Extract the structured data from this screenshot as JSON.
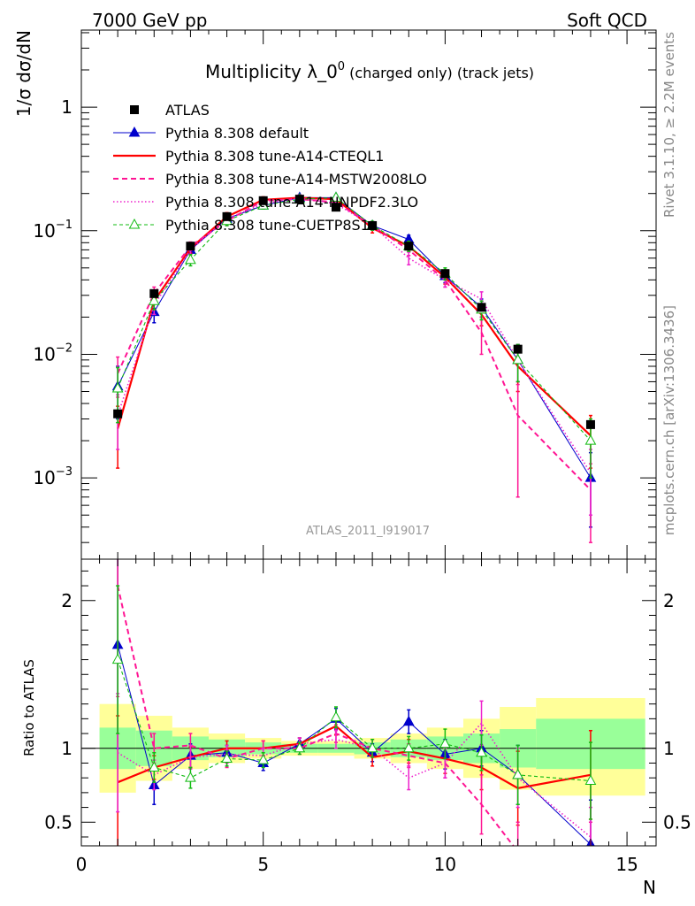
{
  "header": {
    "left": "7000 GeV pp",
    "right": "Soft QCD"
  },
  "plot": {
    "title_main": "Multiplicity λ_0",
    "title_sup": "0",
    "title_sub": " (charged only) (track jets)",
    "ylabel": "1/σ dσ/dN",
    "ref_tag": "ATLAS_2011_I919017",
    "side_top": "Rivet 3.1.10, ≥ 2.2M events",
    "side_bottom": "mcplots.cern.ch [arXiv:1306.3436]"
  },
  "ratio": {
    "ylabel": "Ratio to ATLAS"
  },
  "xlabel": "N",
  "colors": {
    "data": "#000000",
    "default": "#0000cc",
    "cteql1": "#ff0000",
    "mstw": "#ff1493",
    "nnpdf": "#ee22cc",
    "cuetp": "#11bb11",
    "band_outer": "#ffff99",
    "band_inner": "#99ff99"
  },
  "chart_data": [
    {
      "type": "line",
      "title": "Multiplicity λ_0^0 (charged only) (track jets)",
      "xlabel": "N",
      "ylabel": "1/σ dσ/dN",
      "xlim": [
        0,
        15.8
      ],
      "ylim": [
        0.00022,
        4.2
      ],
      "yscale": "log",
      "x_ticks": [
        "0",
        "5",
        "10",
        "15"
      ],
      "y_ticks": [
        {
          "base": "1",
          "exp": ""
        },
        {
          "base": "10",
          "exp": "−1"
        },
        {
          "base": "10",
          "exp": "−2"
        },
        {
          "base": "10",
          "exp": "−3"
        }
      ],
      "legend_position": "top-left",
      "data_series": {
        "name": "ATLAS",
        "x": [
          1,
          2,
          3,
          4,
          5,
          6,
          7,
          8,
          9,
          10,
          11,
          12,
          14
        ],
        "y": [
          0.0033,
          0.031,
          0.075,
          0.13,
          0.175,
          0.18,
          0.155,
          0.11,
          0.075,
          0.045,
          0.024,
          0.011,
          0.0027
        ]
      },
      "series": [
        {
          "name": "Pythia 8.308 default",
          "x": [
            1,
            2,
            3,
            4,
            5,
            6,
            7,
            8,
            9,
            10,
            11,
            12,
            14
          ],
          "y": [
            0.0055,
            0.022,
            0.07,
            0.125,
            0.16,
            0.185,
            0.185,
            0.11,
            0.085,
            0.043,
            0.024,
            0.009,
            0.001
          ],
          "err": [
            0.0025,
            0.004,
            0.006,
            0.01,
            0.01,
            0.01,
            0.01,
            0.009,
            0.007,
            0.005,
            0.004,
            0.003,
            0.0006
          ],
          "dash": "",
          "marker": "triangle-filled"
        },
        {
          "name": "Pythia 8.308 tune-A14-CTEQL1",
          "x": [
            1,
            2,
            3,
            4,
            5,
            6,
            7,
            8,
            9,
            10,
            11,
            12,
            14
          ],
          "y": [
            0.0025,
            0.027,
            0.072,
            0.13,
            0.178,
            0.185,
            0.18,
            0.105,
            0.075,
            0.042,
            0.021,
            0.008,
            0.0022
          ],
          "err": [
            0.0013,
            0.004,
            0.006,
            0.01,
            0.01,
            0.01,
            0.01,
            0.009,
            0.007,
            0.005,
            0.004,
            0.003,
            0.001
          ],
          "dash": "",
          "marker": "none"
        },
        {
          "name": "Pythia 8.308 tune-A14-MSTW2008LO",
          "x": [
            1,
            2,
            3,
            4,
            5,
            6,
            7,
            8,
            9,
            10,
            11,
            12,
            14
          ],
          "y": [
            0.007,
            0.031,
            0.075,
            0.12,
            0.175,
            0.18,
            0.17,
            0.11,
            0.07,
            0.04,
            0.015,
            0.0032,
            0.0008
          ],
          "err": [
            0.0025,
            0.004,
            0.006,
            0.01,
            0.01,
            0.01,
            0.01,
            0.009,
            0.007,
            0.005,
            0.005,
            0.0025,
            0.0005
          ],
          "dash": "6,4",
          "marker": "none"
        },
        {
          "name": "Pythia 8.308 tune-A14-NNPDF2.3LO",
          "x": [
            1,
            2,
            3,
            4,
            5,
            6,
            7,
            8,
            9,
            10,
            11,
            12,
            14
          ],
          "y": [
            0.0032,
            0.025,
            0.07,
            0.125,
            0.165,
            0.185,
            0.165,
            0.11,
            0.06,
            0.04,
            0.028,
            0.009,
            0.0011
          ],
          "err": [
            0.0015,
            0.004,
            0.006,
            0.01,
            0.01,
            0.01,
            0.01,
            0.009,
            0.007,
            0.005,
            0.004,
            0.003,
            0.0006
          ],
          "dash": "1.5,2.5",
          "marker": "none"
        },
        {
          "name": "Pythia 8.308 tune-CUETP8S1",
          "x": [
            1,
            2,
            3,
            4,
            5,
            6,
            7,
            8,
            9,
            10,
            11,
            12,
            14
          ],
          "y": [
            0.0053,
            0.027,
            0.058,
            0.12,
            0.16,
            0.18,
            0.185,
            0.11,
            0.075,
            0.045,
            0.023,
            0.009,
            0.002
          ],
          "err": [
            0.0025,
            0.004,
            0.006,
            0.01,
            0.01,
            0.01,
            0.01,
            0.009,
            0.007,
            0.005,
            0.004,
            0.003,
            0.001
          ],
          "dash": "4,3",
          "marker": "triangle-open"
        }
      ]
    },
    {
      "type": "line",
      "title": "",
      "xlabel": "N",
      "ylabel": "Ratio to ATLAS",
      "xlim": [
        0,
        15.8
      ],
      "ylim": [
        0.34,
        2.28
      ],
      "x_ticks": [
        "0",
        "5",
        "10",
        "15"
      ],
      "y_ticks": [
        "0.5",
        "1",
        "2"
      ],
      "reference_line": 1,
      "bands": {
        "x_edges": [
          0.5,
          1.5,
          2.5,
          3.5,
          4.5,
          5.5,
          6.5,
          7.5,
          8.5,
          9.5,
          10.5,
          11.5,
          12.5,
          15.5
        ],
        "inner_lo": [
          0.86,
          0.88,
          0.92,
          0.94,
          0.96,
          0.97,
          0.97,
          0.96,
          0.94,
          0.92,
          0.9,
          0.87,
          0.86
        ],
        "inner_hi": [
          1.14,
          1.12,
          1.08,
          1.06,
          1.04,
          1.03,
          1.03,
          1.04,
          1.06,
          1.08,
          1.1,
          1.13,
          1.2
        ],
        "outer_lo": [
          0.7,
          0.78,
          0.86,
          0.9,
          0.93,
          0.95,
          0.95,
          0.93,
          0.9,
          0.86,
          0.8,
          0.72,
          0.68
        ],
        "outer_hi": [
          1.3,
          1.22,
          1.14,
          1.1,
          1.07,
          1.05,
          1.05,
          1.07,
          1.1,
          1.14,
          1.2,
          1.28,
          1.34
        ]
      },
      "series": [
        {
          "name": "Pythia 8.308 default",
          "x": [
            1,
            2,
            3,
            4,
            5,
            6,
            7,
            8,
            9,
            10,
            11,
            12,
            14
          ],
          "y": [
            1.7,
            0.75,
            0.95,
            0.97,
            0.9,
            1.03,
            1.2,
            0.97,
            1.18,
            0.96,
            1.0,
            0.82,
            0.35
          ],
          "err": [
            0.7,
            0.13,
            0.08,
            0.05,
            0.05,
            0.04,
            0.07,
            0.06,
            0.08,
            0.1,
            0.12,
            0.2,
            0.3
          ]
        },
        {
          "name": "Pythia 8.308 tune-A14-CTEQL1",
          "x": [
            1,
            2,
            3,
            4,
            5,
            6,
            7,
            8,
            9,
            10,
            11,
            12,
            14
          ],
          "y": [
            0.77,
            0.87,
            0.94,
            1.0,
            1.0,
            1.03,
            1.15,
            0.94,
            0.98,
            0.93,
            0.87,
            0.73,
            0.82
          ],
          "err": [
            0.45,
            0.08,
            0.07,
            0.05,
            0.05,
            0.04,
            0.06,
            0.06,
            0.08,
            0.1,
            0.15,
            0.25,
            0.3
          ]
        },
        {
          "name": "Pythia 8.308 tune-A14-MSTW2008LO",
          "x": [
            1,
            2,
            3,
            4,
            5,
            6,
            7,
            8,
            9,
            10,
            11,
            12,
            14
          ],
          "y": [
            2.1,
            1.0,
            1.02,
            0.93,
            1.0,
            1.0,
            1.1,
            1.0,
            0.95,
            0.9,
            0.62,
            0.3,
            0.3
          ],
          "err": [
            0.75,
            0.1,
            0.08,
            0.06,
            0.05,
            0.04,
            0.06,
            0.06,
            0.08,
            0.1,
            0.2,
            0.2,
            0.2
          ]
        },
        {
          "name": "Pythia 8.308 tune-A14-NNPDF2.3LO",
          "x": [
            1,
            2,
            3,
            4,
            5,
            6,
            7,
            8,
            9,
            10,
            11,
            12,
            14
          ],
          "y": [
            0.97,
            0.82,
            0.94,
            0.96,
            0.95,
            1.03,
            1.06,
            1.0,
            0.8,
            0.9,
            1.17,
            0.8,
            0.4
          ],
          "err": [
            0.4,
            0.1,
            0.08,
            0.06,
            0.05,
            0.04,
            0.06,
            0.06,
            0.08,
            0.1,
            0.15,
            0.2,
            0.2
          ]
        },
        {
          "name": "Pythia 8.308 tune-CUETP8S1",
          "x": [
            1,
            2,
            3,
            4,
            5,
            6,
            7,
            8,
            9,
            10,
            11,
            12,
            14
          ],
          "y": [
            1.6,
            0.87,
            0.8,
            0.93,
            0.92,
            1.0,
            1.21,
            1.0,
            1.0,
            1.03,
            0.97,
            0.82,
            0.78
          ],
          "err": [
            0.5,
            0.1,
            0.07,
            0.05,
            0.05,
            0.04,
            0.07,
            0.06,
            0.08,
            0.1,
            0.12,
            0.2,
            0.26
          ]
        }
      ]
    }
  ]
}
